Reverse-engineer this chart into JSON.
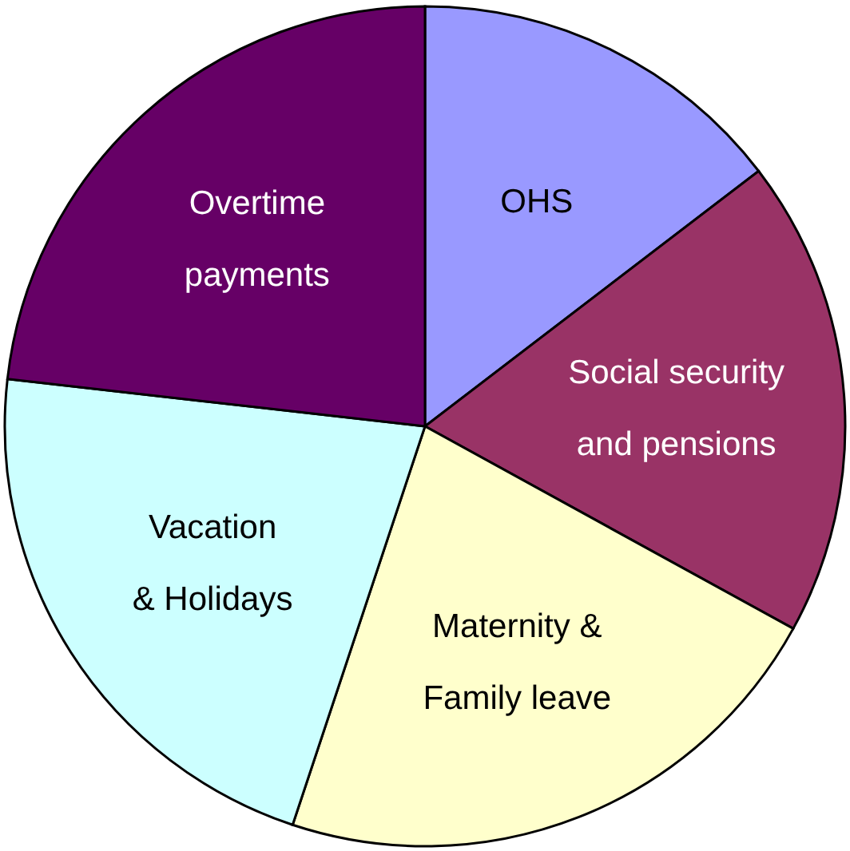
{
  "chart_data": {
    "type": "pie",
    "categories": [
      "OHS",
      "Social security and pensions",
      "Maternity & Family leave",
      "Vacation & Holidays",
      "Overtime payments"
    ],
    "values": [
      14.6,
      18.4,
      22.1,
      21.7,
      23.2
    ],
    "colors": [
      "#9999ff",
      "#993366",
      "#ffffcc",
      "#ccffff",
      "#660066"
    ]
  }
}
